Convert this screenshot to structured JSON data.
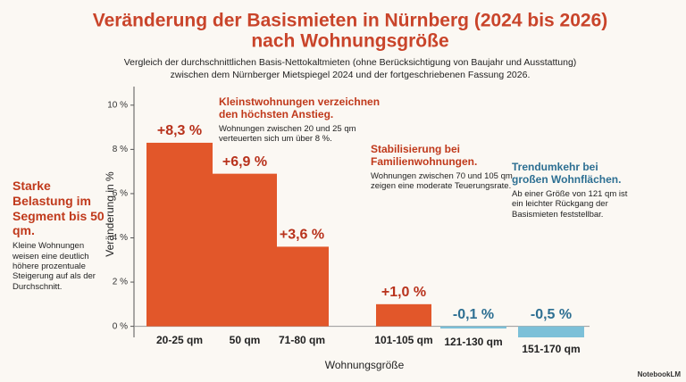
{
  "chart_data": {
    "type": "bar",
    "title": [
      "Veränderung der Basismieten in Nürnberg (2024 bis 2026)",
      "nach Wohnungsgröße"
    ],
    "subtitle": [
      "Vergleich der durchschnittlichen Basis-Nettokaltmieten (ohne Berücksichtigung von Baujahr und Ausstattung)",
      "zwischen dem Nürnberger Mietspiegel 2024 und der fortgeschriebenen Fassung 2026."
    ],
    "categories": [
      "20-25 qm",
      "50 qm",
      "71-80 qm",
      "101-105 qm",
      "121-130 qm",
      "151-170 qm"
    ],
    "values": [
      8.3,
      6.9,
      3.6,
      1.0,
      -0.1,
      -0.5
    ],
    "value_labels": [
      "+8,3 %",
      "+6,9 %",
      "+3,6 %",
      "+1,0 %",
      "-0,1 %",
      "-0,5 %"
    ],
    "colors": [
      "#e2572a",
      "#e2572a",
      "#e2572a",
      "#e2572a",
      "#7cc0d8",
      "#7cc0d8"
    ],
    "label_colors": [
      "#b8321c",
      "#b8321c",
      "#b8321c",
      "#b8321c",
      "#2d6f92",
      "#2d6f92"
    ],
    "xlabel": "Wohnungsgröße",
    "ylabel": "Veränderung in %",
    "ylim": [
      -0.5,
      10.8
    ],
    "yticks": [
      {
        "value": 0,
        "label": "0 %"
      },
      {
        "value": 2,
        "label": "2 %"
      },
      {
        "value": 4,
        "label": "4 %"
      },
      {
        "value": 6,
        "label": "6 %"
      },
      {
        "value": 8,
        "label": "8 %"
      },
      {
        "value": 10,
        "label": "10 %"
      }
    ],
    "annotations": [
      {
        "title": "Starke Belastung im Segment bis 50 qm.",
        "text": "Kleine Wohnungen weisen eine deutlich höhere prozentuale Steigerung auf als der Durchschnitt."
      },
      {
        "title": "Kleinstwohnungen verzeichnen den höchsten Anstieg.",
        "text": "Wohnungen zwischen 20 und 25 qm verteuerten sich um über 8 %."
      },
      {
        "title": "Stabilisierung bei Familienwohnungen.",
        "text": "Wohnungen zwischen 70 und 105 qm zeigen eine moderate Teuerungsrate."
      },
      {
        "title": "Trendumkehr bei großen Wohnflächen.",
        "text": "Ab einer Größe von 121 qm ist ein leichter Rückgang der Basismieten feststellbar."
      }
    ],
    "credit": "NotebookLM"
  }
}
